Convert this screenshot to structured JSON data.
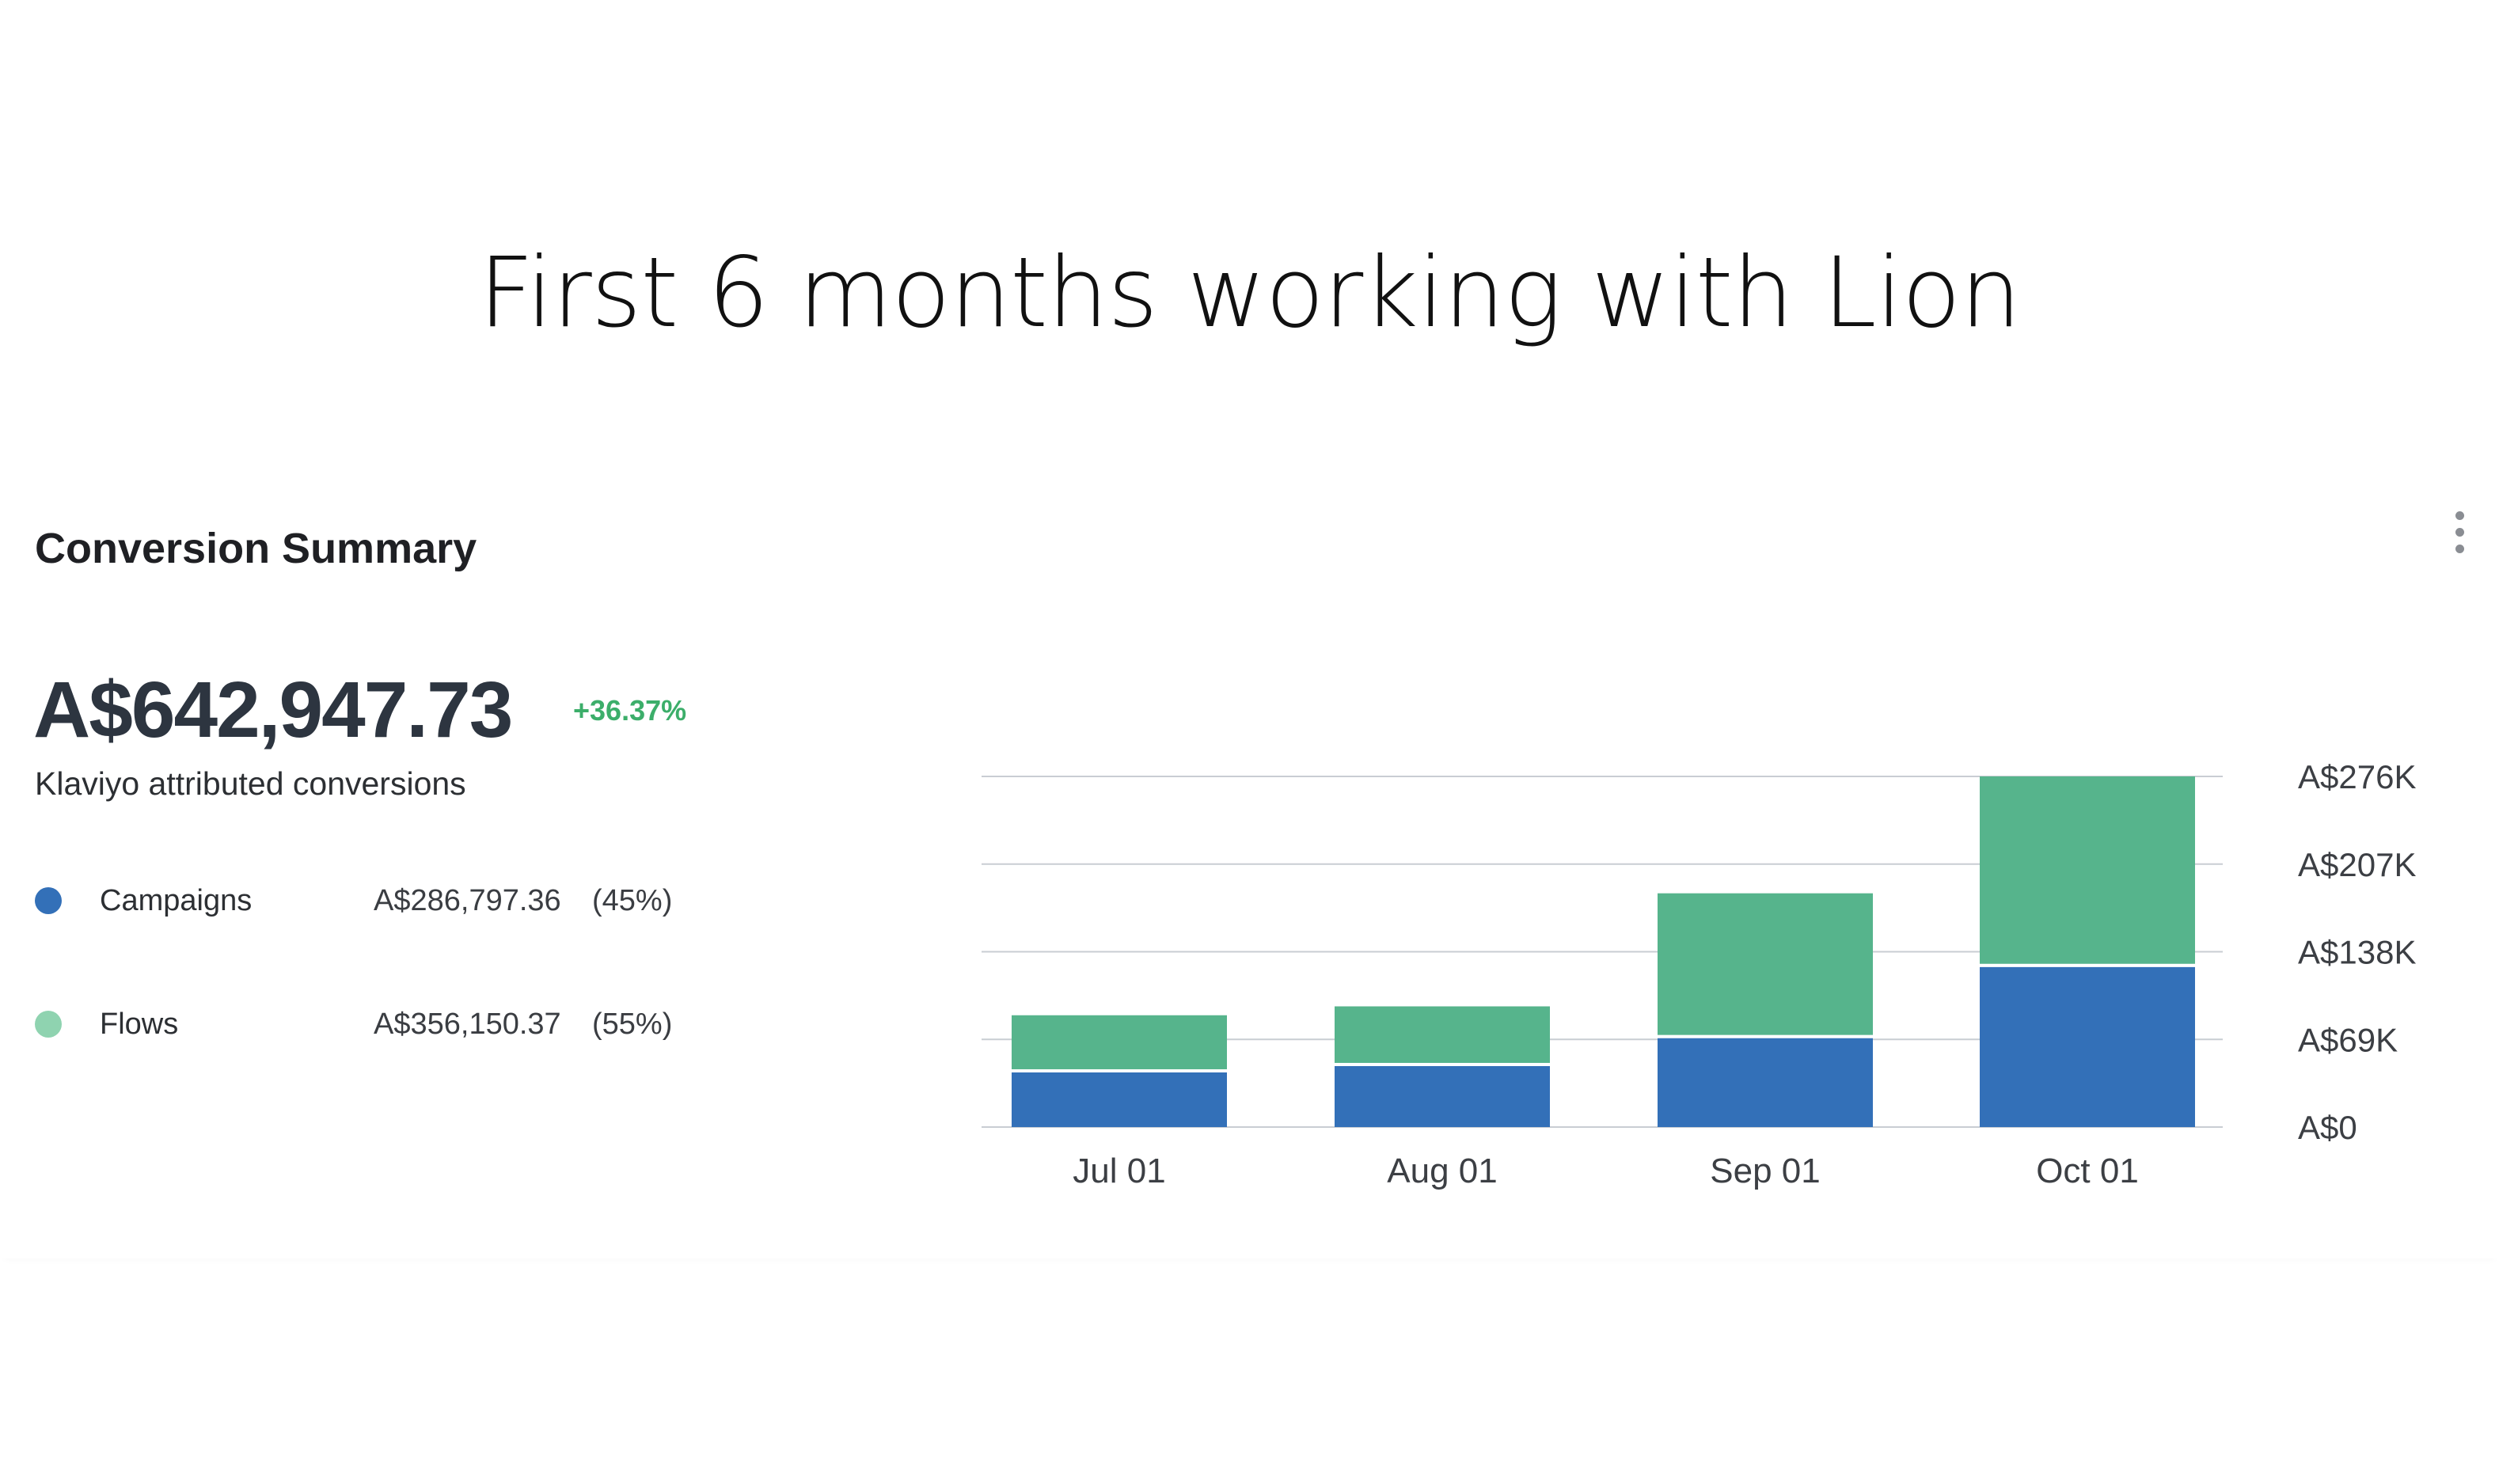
{
  "headline": "First 6 months working with Lion",
  "card": {
    "title": "Conversion Summary",
    "menu_icon": "kebab-vertical-icon",
    "total": "A$642,947.73",
    "change": "+36.37%",
    "subtitle": "Klaviyo attributed conversions",
    "legend": [
      {
        "name": "Campaigns",
        "value": "A$286,797.36",
        "percent": "(45%)",
        "color": "#3370b8"
      },
      {
        "name": "Flows",
        "value": "A$356,150.37",
        "percent": "(55%)",
        "color": "#8fd3b0"
      }
    ]
  },
  "colors": {
    "campaigns_bar": "#3370b8",
    "flows_bar": "#56b48c",
    "positive_change": "#3cae6a",
    "gridline": "#c9cdd3"
  },
  "chart_data": {
    "type": "bar",
    "stacked": true,
    "categories": [
      "Jul 01",
      "Aug 01",
      "Sep 01",
      "Oct 01"
    ],
    "series": [
      {
        "name": "Campaigns",
        "color": "#3370b8",
        "values": [
          43000,
          48000,
          70000,
          126000
        ]
      },
      {
        "name": "Flows",
        "color": "#56b48c",
        "values": [
          45000,
          47000,
          114000,
          150000
        ]
      }
    ],
    "ylim": [
      0,
      276000
    ],
    "yticks": [
      0,
      69000,
      138000,
      207000,
      276000
    ],
    "ytick_labels": [
      "A$0",
      "A$69K",
      "A$138K",
      "A$207K",
      "A$276K"
    ],
    "y_axis_side": "right",
    "grid": true,
    "xlabel": "",
    "ylabel": ""
  }
}
